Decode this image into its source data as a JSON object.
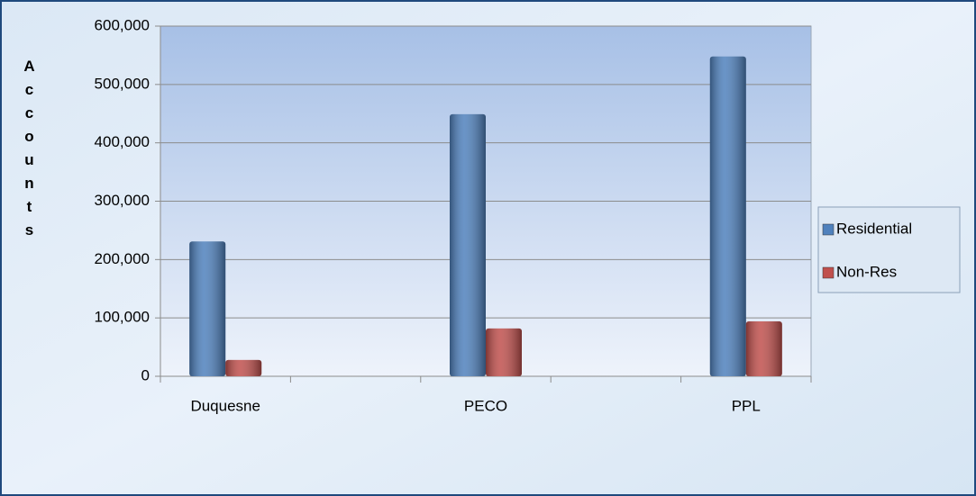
{
  "chart_data": {
    "type": "bar",
    "y_label": "Accounts",
    "categories": [
      "Duquesne",
      null,
      "PECO",
      null,
      "PPL"
    ],
    "series": [
      {
        "name": "Residential",
        "color": "#4f81bd",
        "values": [
          231000,
          null,
          449000,
          null,
          548000
        ]
      },
      {
        "name": "Non-Res",
        "color": "#c0504d",
        "values": [
          28000,
          null,
          82000,
          null,
          94000
        ]
      }
    ],
    "ylim": [
      0,
      600000
    ],
    "yticks": [
      0,
      {
        "value": 100000,
        "label": "100,000"
      },
      {
        "value": 200000,
        "label": "200,000"
      },
      {
        "value": 300000,
        "label": "300,000"
      },
      {
        "value": 400000,
        "label": "400,000"
      },
      {
        "value": 500000,
        "label": "500,000"
      },
      {
        "value": 600000,
        "label": "600,000"
      }
    ],
    "grid": true,
    "legend": "right"
  }
}
